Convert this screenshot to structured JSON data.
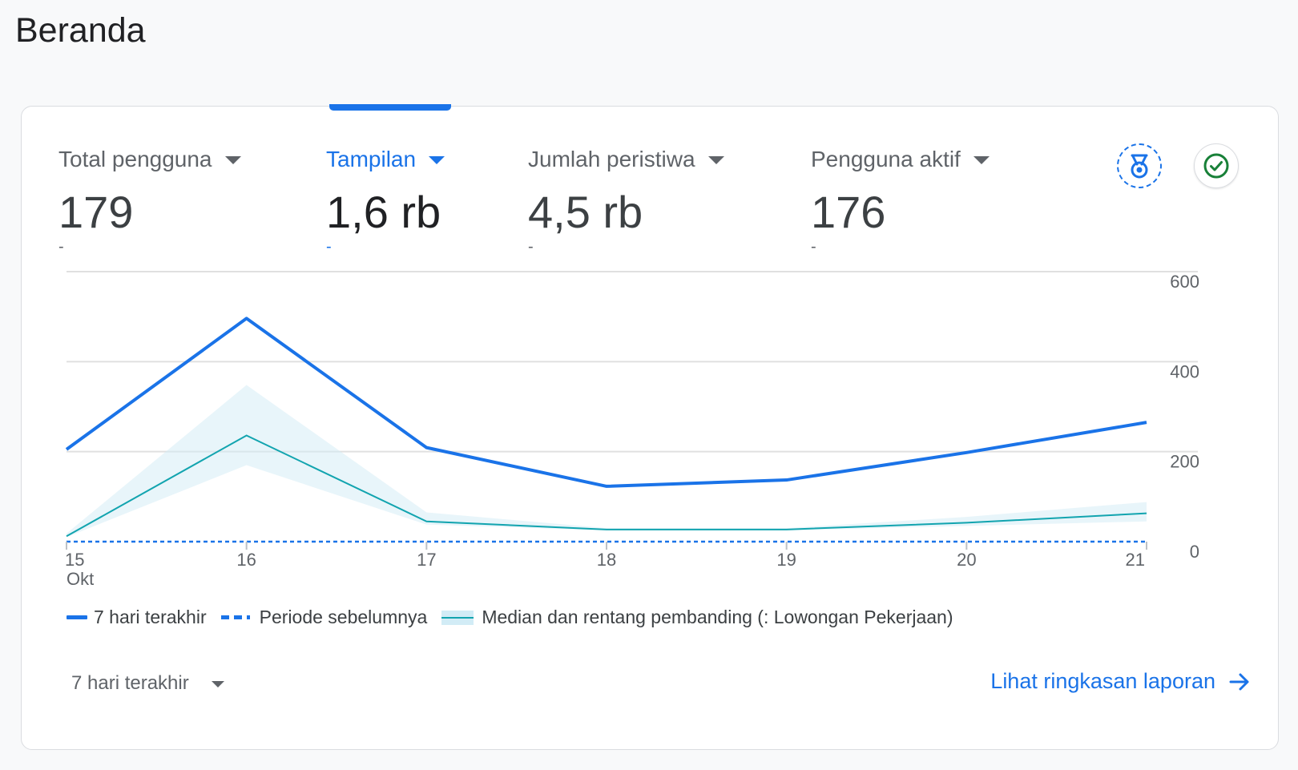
{
  "page": {
    "title": "Beranda"
  },
  "metrics": [
    {
      "label": "Total pengguna",
      "value": "179",
      "delta": "-",
      "active": false
    },
    {
      "label": "Tampilan",
      "value": "1,6 rb",
      "delta": "-",
      "active": true
    },
    {
      "label": "Jumlah peristiwa",
      "value": "4,5 rb",
      "delta": "-",
      "active": false
    },
    {
      "label": "Pengguna aktif",
      "value": "176",
      "delta": "-",
      "active": false
    }
  ],
  "icons": {
    "medal": "medal-icon",
    "check": "check-circle-icon",
    "arrow": "arrow-right-icon"
  },
  "chart_data": {
    "type": "line",
    "categories": [
      "15",
      "16",
      "17",
      "18",
      "19",
      "20",
      "21"
    ],
    "x_sublabel": "Okt",
    "ylim": [
      0,
      600
    ],
    "y_ticks": [
      "600",
      "400",
      "200",
      "0"
    ],
    "y_tick_values": [
      600,
      400,
      200,
      0
    ],
    "series": [
      {
        "name": "7 hari terakhir",
        "style": "solid",
        "color": "#1a73e8",
        "values": [
          205,
          496,
          209,
          123,
          137,
          198,
          265
        ]
      },
      {
        "name": "Periode sebelumnya",
        "style": "dashed",
        "color": "#1a73e8",
        "values": [
          0,
          0,
          0,
          0,
          0,
          0,
          0
        ]
      },
      {
        "name": "Median dan rentang pembanding (: Lowongan Pekerjaan)",
        "style": "median-band",
        "color": "#12a4af",
        "band_color": "#d2ecf6",
        "values": [
          12,
          236,
          45,
          27,
          27,
          42,
          63
        ],
        "band_low": [
          10,
          170,
          38,
          25,
          25,
          35,
          45
        ],
        "band_high": [
          18,
          348,
          65,
          30,
          30,
          55,
          88
        ]
      }
    ],
    "grid": true,
    "legend_position": "bottom-left"
  },
  "footer": {
    "range_label": "7 hari terakhir",
    "report_link": "Lihat ringkasan laporan"
  }
}
